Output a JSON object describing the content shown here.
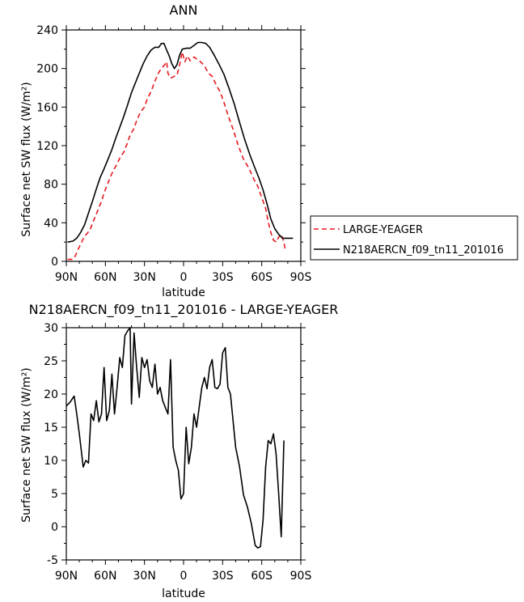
{
  "chart_data": [
    {
      "type": "line",
      "title": "ANN",
      "xlabel": "latitude",
      "ylabel": "Surface net SW flux (W/m²)",
      "xlim": [
        90,
        -90
      ],
      "ylim": [
        0,
        240
      ],
      "xticks": [
        90,
        60,
        30,
        0,
        -30,
        -60,
        -90
      ],
      "xtick_labels": [
        "90N",
        "60N",
        "30N",
        "0",
        "30S",
        "60S",
        "90S"
      ],
      "yticks": [
        0,
        40,
        80,
        120,
        160,
        200,
        240
      ],
      "ytick_labels": [
        "0",
        "40",
        "80",
        "120",
        "160",
        "200",
        "240"
      ],
      "legend_position": "right",
      "series": [
        {
          "name": "LARGE-YEAGER",
          "color": "#e8191e",
          "dash": true,
          "points": [
            [
              89,
              2
            ],
            [
              86,
              2
            ],
            [
              84,
              3
            ],
            [
              80,
              15
            ],
            [
              76,
              26
            ],
            [
              72,
              32
            ],
            [
              70,
              39
            ],
            [
              67,
              49
            ],
            [
              65,
              56
            ],
            [
              63,
              62
            ],
            [
              61,
              71
            ],
            [
              59,
              78
            ],
            [
              56,
              88
            ],
            [
              54,
              94
            ],
            [
              51,
              101
            ],
            [
              49,
              107
            ],
            [
              46,
              113
            ],
            [
              43,
              123
            ],
            [
              41,
              131
            ],
            [
              38,
              138
            ],
            [
              36,
              146
            ],
            [
              33,
              155
            ],
            [
              30,
              160
            ],
            [
              28,
              168
            ],
            [
              25,
              176
            ],
            [
              22,
              187
            ],
            [
              19,
              196
            ],
            [
              17,
              200
            ],
            [
              15,
              203
            ],
            [
              13,
              207
            ],
            [
              12,
              195
            ],
            [
              10,
              190
            ],
            [
              7,
              192
            ],
            [
              5,
              193
            ],
            [
              3,
              204
            ],
            [
              1,
              217
            ],
            [
              -1,
              207
            ],
            [
              -3,
              213
            ],
            [
              -5,
              208
            ],
            [
              -8,
              212
            ],
            [
              -10,
              210
            ],
            [
              -13,
              207
            ],
            [
              -16,
              203
            ],
            [
              -19,
              195
            ],
            [
              -22,
              192
            ],
            [
              -25,
              183
            ],
            [
              -28,
              176
            ],
            [
              -31,
              165
            ],
            [
              -34,
              152
            ],
            [
              -38,
              137
            ],
            [
              -42,
              120
            ],
            [
              -46,
              106
            ],
            [
              -50,
              97
            ],
            [
              -54,
              85
            ],
            [
              -57,
              78
            ],
            [
              -60,
              66
            ],
            [
              -63,
              55
            ],
            [
              -65,
              41
            ],
            [
              -67,
              30
            ],
            [
              -69,
              22
            ],
            [
              -71,
              20
            ],
            [
              -73,
              25
            ],
            [
              -75,
              28
            ],
            [
              -77,
              20
            ],
            [
              -78,
              12
            ]
          ]
        },
        {
          "name": "N218AERCN_f09_tn11_201016",
          "color": "#000000",
          "dash": false,
          "points": [
            [
              89,
              20
            ],
            [
              85,
              21
            ],
            [
              82,
              24
            ],
            [
              79,
              30
            ],
            [
              76,
              38
            ],
            [
              73,
              50
            ],
            [
              70,
              62
            ],
            [
              67,
              75
            ],
            [
              64,
              87
            ],
            [
              61,
              96
            ],
            [
              58,
              106
            ],
            [
              55,
              116
            ],
            [
              52,
              128
            ],
            [
              49,
              139
            ],
            [
              46,
              150
            ],
            [
              43,
              162
            ],
            [
              40,
              175
            ],
            [
              37,
              185
            ],
            [
              34,
              195
            ],
            [
              31,
              205
            ],
            [
              28,
              213
            ],
            [
              25,
              219
            ],
            [
              22,
              222
            ],
            [
              19,
              222
            ],
            [
              17,
              226
            ],
            [
              15,
              226
            ],
            [
              13,
              219
            ],
            [
              11,
              213
            ],
            [
              9,
              205
            ],
            [
              7,
              200
            ],
            [
              5,
              204
            ],
            [
              3,
              214
            ],
            [
              1,
              220
            ],
            [
              -2,
              221
            ],
            [
              -5,
              221
            ],
            [
              -8,
              224
            ],
            [
              -11,
              227
            ],
            [
              -14,
              227
            ],
            [
              -17,
              226
            ],
            [
              -20,
              222
            ],
            [
              -23,
              215
            ],
            [
              -27,
              205
            ],
            [
              -31,
              194
            ],
            [
              -35,
              179
            ],
            [
              -39,
              163
            ],
            [
              -43,
              144
            ],
            [
              -47,
              126
            ],
            [
              -51,
              110
            ],
            [
              -55,
              96
            ],
            [
              -58,
              86
            ],
            [
              -61,
              74
            ],
            [
              -64,
              60
            ],
            [
              -67,
              44
            ],
            [
              -70,
              34
            ],
            [
              -73,
              28
            ],
            [
              -76,
              24
            ],
            [
              -79,
              24
            ],
            [
              -84,
              24
            ]
          ]
        }
      ]
    },
    {
      "type": "line",
      "title": "N218AERCN_f09_tn11_201016 - LARGE-YEAGER",
      "xlabel": "latitude",
      "ylabel": "Surface net SW flux (W/m²)",
      "xlim": [
        90,
        -90
      ],
      "ylim": [
        -5,
        30
      ],
      "xticks": [
        90,
        60,
        30,
        0,
        -30,
        -60,
        -90
      ],
      "xtick_labels": [
        "90N",
        "60N",
        "30N",
        "0",
        "30S",
        "60S",
        "90S"
      ],
      "yticks": [
        -5,
        0,
        5,
        10,
        15,
        20,
        25,
        30
      ],
      "ytick_labels": [
        "-5",
        "0",
        "5",
        "10",
        "15",
        "20",
        "25",
        "30"
      ],
      "series": [
        {
          "color": "#000000",
          "points": [
            [
              90,
              18.2
            ],
            [
              87,
              18.8
            ],
            [
              84,
              19.7
            ],
            [
              82,
              17.0
            ],
            [
              80,
              14.0
            ],
            [
              77,
              9.0
            ],
            [
              75,
              10.0
            ],
            [
              73,
              9.6
            ],
            [
              71,
              17.0
            ],
            [
              69,
              16.0
            ],
            [
              67,
              19.0
            ],
            [
              65,
              15.8
            ],
            [
              63,
              17.0
            ],
            [
              61,
              24.0
            ],
            [
              59,
              16.0
            ],
            [
              57,
              17.5
            ],
            [
              55,
              23.0
            ],
            [
              53,
              17.0
            ],
            [
              51,
              21.0
            ],
            [
              49,
              25.5
            ],
            [
              47,
              24.0
            ],
            [
              45,
              28.8
            ],
            [
              43,
              29.5
            ],
            [
              41,
              30.0
            ],
            [
              40,
              18.5
            ],
            [
              38,
              29.2
            ],
            [
              36,
              24.0
            ],
            [
              34,
              19.5
            ],
            [
              32,
              25.5
            ],
            [
              30,
              24.0
            ],
            [
              28,
              25.2
            ],
            [
              26,
              22.0
            ],
            [
              24,
              21.0
            ],
            [
              22,
              24.5
            ],
            [
              20,
              20.0
            ],
            [
              18,
              21.0
            ],
            [
              16,
              19.0
            ],
            [
              14,
              18.0
            ],
            [
              12,
              17.0
            ],
            [
              10,
              25.2
            ],
            [
              8,
              12.0
            ],
            [
              6,
              10.0
            ],
            [
              4,
              8.5
            ],
            [
              2,
              4.2
            ],
            [
              0,
              5.0
            ],
            [
              -2,
              15.0
            ],
            [
              -4,
              9.5
            ],
            [
              -6,
              12.0
            ],
            [
              -8,
              17.0
            ],
            [
              -10,
              15.0
            ],
            [
              -12,
              18.0
            ],
            [
              -14,
              21.0
            ],
            [
              -16,
              22.5
            ],
            [
              -18,
              20.8
            ],
            [
              -20,
              24.0
            ],
            [
              -22,
              25.2
            ],
            [
              -24,
              21.0
            ],
            [
              -26,
              20.8
            ],
            [
              -28,
              21.5
            ],
            [
              -30,
              26.2
            ],
            [
              -32,
              27.0
            ],
            [
              -34,
              21.0
            ],
            [
              -36,
              20.0
            ],
            [
              -38,
              16.0
            ],
            [
              -40,
              12.0
            ],
            [
              -43,
              9.0
            ],
            [
              -46,
              4.8
            ],
            [
              -49,
              3.0
            ],
            [
              -52,
              0.5
            ],
            [
              -55,
              -2.8
            ],
            [
              -57,
              -3.2
            ],
            [
              -59,
              -3.0
            ],
            [
              -61,
              1.0
            ],
            [
              -63,
              9.0
            ],
            [
              -65,
              13.0
            ],
            [
              -67,
              12.5
            ],
            [
              -69,
              14.0
            ],
            [
              -71,
              11.0
            ],
            [
              -73,
              5.0
            ],
            [
              -75,
              -1.5
            ],
            [
              -77,
              13.0
            ]
          ]
        }
      ]
    }
  ]
}
